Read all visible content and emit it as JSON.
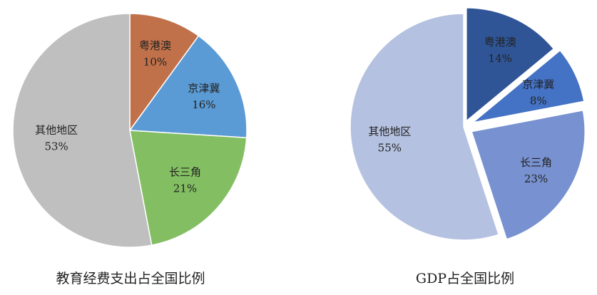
{
  "chart_data": [
    {
      "type": "pie",
      "caption": "教育经费支出占全国比例",
      "slices": [
        {
          "label": "粤港澳",
          "value": 10,
          "value_label": "10%",
          "color": "#c0714a"
        },
        {
          "label": "京津冀",
          "value": 16,
          "value_label": "16%",
          "color": "#5b9bd5"
        },
        {
          "label": "长三角",
          "value": 21,
          "value_label": "21%",
          "color": "#83bf62"
        },
        {
          "label": "其他地区",
          "value": 53,
          "value_label": "53%",
          "color": "#bfbfbf"
        }
      ]
    },
    {
      "type": "pie",
      "caption": "GDP占全国比例",
      "exploded": true,
      "slices": [
        {
          "label": "粤港澳",
          "value": 14,
          "value_label": "14%",
          "color": "#2f5597"
        },
        {
          "label": "京津冀",
          "value": 8,
          "value_label": "8%",
          "color": "#4472c4"
        },
        {
          "label": "长三角",
          "value": 23,
          "value_label": "23%",
          "color": "#7891d0"
        },
        {
          "label": "其他地区",
          "value": 55,
          "value_label": "55%",
          "color": "#b4c1e0"
        }
      ]
    }
  ]
}
